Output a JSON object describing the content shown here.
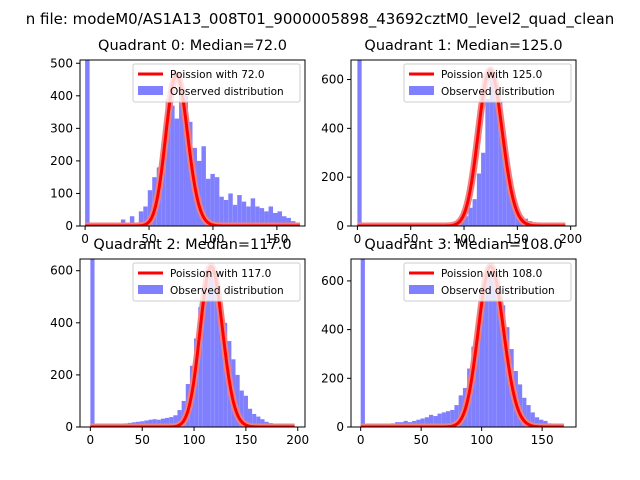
{
  "figure": {
    "suptitle": "n file: modeM0/AS1A13_008T01_9000005898_43692cztM0_level2_quad_clean"
  },
  "colors": {
    "hist": "#8080ff",
    "poisson": "#ff0000",
    "poisson_halo": "#f08080",
    "axis": "#000000"
  },
  "chart_data": [
    {
      "type": "bar",
      "title": "Quadrant 0: Median=72.0",
      "xlabel": "",
      "ylabel": "",
      "xlim": [
        -4,
        172
      ],
      "ylim": [
        0,
        510
      ],
      "xticks": [
        0,
        50,
        100,
        150
      ],
      "yticks": [
        0,
        100,
        200,
        300,
        400,
        500
      ],
      "grid": false,
      "legend_position": "top-right",
      "legend": {
        "line_label": "Poission with 72.0",
        "hist_label": "Observed distribution"
      },
      "bin_width": 3.5,
      "histogram_bins": [
        [
          0,
          510
        ],
        [
          7,
          5
        ],
        [
          14,
          5
        ],
        [
          21,
          10
        ],
        [
          28,
          20
        ],
        [
          35,
          30
        ],
        [
          42,
          45
        ],
        [
          45.5,
          60
        ],
        [
          49,
          110
        ],
        [
          52.5,
          150
        ],
        [
          56,
          180
        ],
        [
          59.5,
          250
        ],
        [
          63,
          390
        ],
        [
          66.5,
          370
        ],
        [
          70,
          330
        ],
        [
          73.5,
          440
        ],
        [
          77,
          400
        ],
        [
          80.5,
          320
        ],
        [
          84,
          240
        ],
        [
          87.5,
          200
        ],
        [
          91,
          245
        ],
        [
          94.5,
          145
        ],
        [
          98,
          160
        ],
        [
          101.5,
          150
        ],
        [
          105,
          90
        ],
        [
          108.5,
          80
        ],
        [
          112,
          100
        ],
        [
          115.5,
          65
        ],
        [
          119,
          95
        ],
        [
          122.5,
          75
        ],
        [
          126,
          60
        ],
        [
          129.5,
          85
        ],
        [
          133,
          60
        ],
        [
          136.5,
          55
        ],
        [
          140,
          45
        ],
        [
          143.5,
          60
        ],
        [
          147,
          40
        ],
        [
          150.5,
          45
        ],
        [
          154,
          30
        ],
        [
          157.5,
          25
        ],
        [
          161,
          15
        ],
        [
          164.5,
          10
        ]
      ],
      "poisson_lambda": 72.0,
      "poisson_scale": 9880,
      "poisson_x_range": [
        0,
        168
      ]
    },
    {
      "type": "bar",
      "title": "Quadrant 1: Median=125.0",
      "xlabel": "",
      "ylabel": "",
      "xlim": [
        -6,
        205
      ],
      "ylim": [
        0,
        680
      ],
      "xticks": [
        0,
        50,
        100,
        150,
        200
      ],
      "yticks": [
        0,
        200,
        400,
        600
      ],
      "grid": false,
      "legend_position": "top-right",
      "legend": {
        "line_label": "Poission with 125.0",
        "hist_label": "Observed distribution"
      },
      "bin_width": 4,
      "histogram_bins": [
        [
          0,
          680
        ],
        [
          84,
          3
        ],
        [
          88,
          5
        ],
        [
          92,
          10
        ],
        [
          96,
          20
        ],
        [
          100,
          40
        ],
        [
          104,
          75
        ],
        [
          108,
          110
        ],
        [
          112,
          215
        ],
        [
          116,
          300
        ],
        [
          120,
          520
        ],
        [
          124,
          610
        ],
        [
          128,
          590
        ],
        [
          132,
          510
        ],
        [
          136,
          350
        ],
        [
          140,
          210
        ],
        [
          144,
          120
        ],
        [
          148,
          70
        ],
        [
          152,
          40
        ],
        [
          156,
          30
        ],
        [
          160,
          20
        ],
        [
          164,
          15
        ],
        [
          168,
          10
        ],
        [
          172,
          5
        ],
        [
          176,
          3
        ]
      ],
      "poisson_lambda": 125.0,
      "poisson_scale": 17900,
      "poisson_x_range": [
        0,
        195
      ]
    },
    {
      "type": "bar",
      "title": "Quadrant 2: Median=117.0",
      "xlabel": "",
      "ylabel": "",
      "xlim": [
        -10,
        207
      ],
      "ylim": [
        0,
        645
      ],
      "xticks": [
        0,
        50,
        100,
        150,
        200
      ],
      "yticks": [
        0,
        200,
        400,
        600
      ],
      "grid": false,
      "legend_position": "top-right",
      "legend": {
        "line_label": "Poission with 117.0",
        "hist_label": "Observed distribution"
      },
      "bin_width": 4,
      "histogram_bins": [
        [
          0,
          645
        ],
        [
          20,
          5
        ],
        [
          24,
          10
        ],
        [
          28,
          12
        ],
        [
          32,
          14
        ],
        [
          36,
          16
        ],
        [
          40,
          18
        ],
        [
          44,
          20
        ],
        [
          48,
          22
        ],
        [
          52,
          25
        ],
        [
          56,
          28
        ],
        [
          60,
          30
        ],
        [
          64,
          28
        ],
        [
          68,
          32
        ],
        [
          72,
          35
        ],
        [
          76,
          38
        ],
        [
          80,
          45
        ],
        [
          84,
          65
        ],
        [
          88,
          100
        ],
        [
          92,
          165
        ],
        [
          96,
          235
        ],
        [
          100,
          340
        ],
        [
          104,
          460
        ],
        [
          108,
          530
        ],
        [
          112,
          610
        ],
        [
          116,
          595
        ],
        [
          120,
          555
        ],
        [
          124,
          445
        ],
        [
          128,
          400
        ],
        [
          132,
          330
        ],
        [
          136,
          260
        ],
        [
          140,
          200
        ],
        [
          144,
          140
        ],
        [
          148,
          120
        ],
        [
          152,
          70
        ],
        [
          156,
          50
        ],
        [
          160,
          40
        ],
        [
          164,
          30
        ],
        [
          168,
          20
        ],
        [
          172,
          15
        ],
        [
          176,
          10
        ],
        [
          180,
          8
        ],
        [
          184,
          5
        ]
      ],
      "poisson_lambda": 117.0,
      "poisson_scale": 16700,
      "poisson_x_range": [
        0,
        197
      ]
    },
    {
      "type": "bar",
      "title": "Quadrant 3: Median=108.0",
      "xlabel": "",
      "ylabel": "",
      "xlim": [
        -8,
        178
      ],
      "ylim": [
        0,
        690
      ],
      "xticks": [
        0,
        50,
        100,
        150
      ],
      "yticks": [
        0,
        200,
        400,
        600
      ],
      "grid": false,
      "legend_position": "top-right",
      "legend": {
        "line_label": "Poission with 108.0",
        "hist_label": "Observed distribution"
      },
      "bin_width": 3.5,
      "histogram_bins": [
        [
          0,
          690
        ],
        [
          18,
          5
        ],
        [
          21.5,
          10
        ],
        [
          25,
          15
        ],
        [
          28.5,
          20
        ],
        [
          32,
          20
        ],
        [
          35.5,
          25
        ],
        [
          39,
          20
        ],
        [
          42.5,
          25
        ],
        [
          46,
          30
        ],
        [
          49.5,
          35
        ],
        [
          53,
          40
        ],
        [
          56.5,
          50
        ],
        [
          60,
          45
        ],
        [
          63.5,
          55
        ],
        [
          67,
          60
        ],
        [
          70.5,
          65
        ],
        [
          74,
          70
        ],
        [
          77.5,
          90
        ],
        [
          81,
          130
        ],
        [
          84.5,
          160
        ],
        [
          88,
          240
        ],
        [
          91.5,
          330
        ],
        [
          95,
          390
        ],
        [
          98.5,
          500
        ],
        [
          102,
          580
        ],
        [
          105.5,
          620
        ],
        [
          109,
          600
        ],
        [
          112.5,
          570
        ],
        [
          116,
          500
        ],
        [
          119.5,
          410
        ],
        [
          123,
          320
        ],
        [
          126.5,
          230
        ],
        [
          130,
          175
        ],
        [
          133.5,
          120
        ],
        [
          137,
          90
        ],
        [
          140.5,
          60
        ],
        [
          144,
          40
        ],
        [
          147.5,
          30
        ],
        [
          151,
          25
        ],
        [
          154.5,
          15
        ],
        [
          158,
          10
        ],
        [
          161.5,
          5
        ]
      ],
      "poisson_lambda": 108.0,
      "poisson_scale": 17200,
      "poisson_x_range": [
        0,
        168
      ]
    }
  ]
}
